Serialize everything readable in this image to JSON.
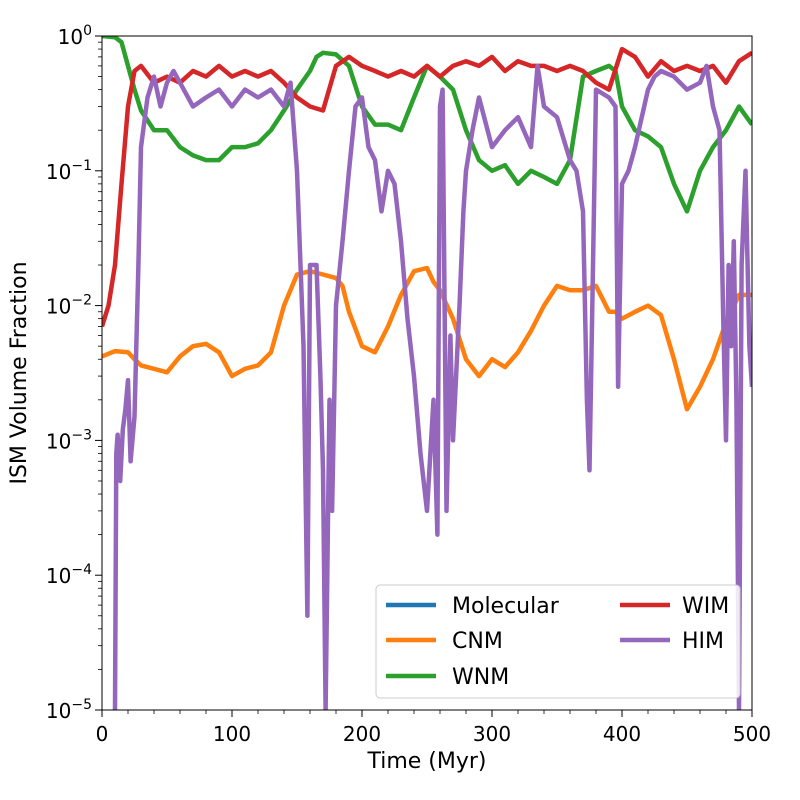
{
  "chart_data": {
    "type": "line",
    "title": "",
    "xlabel": "Time (Myr)",
    "ylabel": "ISM Volume Fraction",
    "xlim": [
      0,
      500
    ],
    "ylim": [
      1e-05,
      1
    ],
    "yscale": "log",
    "grid": false,
    "legend_position": "lower-right",
    "x_ticks": [
      "0",
      "100",
      "200",
      "300",
      "400",
      "500"
    ],
    "y_ticks": [
      {
        "mant": "10",
        "exp": "0"
      },
      {
        "mant": "10",
        "exp": "−1"
      },
      {
        "mant": "10",
        "exp": "−2"
      },
      {
        "mant": "10",
        "exp": "−3"
      },
      {
        "mant": "10",
        "exp": "−4"
      },
      {
        "mant": "10",
        "exp": "−5"
      }
    ],
    "series": [
      {
        "name": "Molecular",
        "color": "#1f77b4",
        "points": []
      },
      {
        "name": "CNM",
        "color": "#ff7f0e",
        "points": [
          [
            0,
            0.0042
          ],
          [
            10,
            0.0046
          ],
          [
            20,
            0.0045
          ],
          [
            25,
            0.004
          ],
          [
            30,
            0.0036
          ],
          [
            40,
            0.0034
          ],
          [
            50,
            0.0032
          ],
          [
            60,
            0.0042
          ],
          [
            70,
            0.005
          ],
          [
            80,
            0.0052
          ],
          [
            90,
            0.0045
          ],
          [
            100,
            0.003
          ],
          [
            110,
            0.0034
          ],
          [
            120,
            0.0036
          ],
          [
            130,
            0.0045
          ],
          [
            140,
            0.01
          ],
          [
            150,
            0.017
          ],
          [
            160,
            0.018
          ],
          [
            170,
            0.017
          ],
          [
            180,
            0.016
          ],
          [
            185,
            0.014
          ],
          [
            190,
            0.009
          ],
          [
            200,
            0.005
          ],
          [
            210,
            0.0045
          ],
          [
            220,
            0.007
          ],
          [
            230,
            0.012
          ],
          [
            240,
            0.018
          ],
          [
            250,
            0.019
          ],
          [
            255,
            0.015
          ],
          [
            260,
            0.013
          ],
          [
            270,
            0.008
          ],
          [
            280,
            0.004
          ],
          [
            290,
            0.003
          ],
          [
            300,
            0.004
          ],
          [
            310,
            0.0035
          ],
          [
            320,
            0.0045
          ],
          [
            330,
            0.0065
          ],
          [
            340,
            0.01
          ],
          [
            350,
            0.014
          ],
          [
            360,
            0.013
          ],
          [
            370,
            0.013
          ],
          [
            380,
            0.014
          ],
          [
            390,
            0.009
          ],
          [
            395,
            0.009
          ],
          [
            400,
            0.008
          ],
          [
            410,
            0.009
          ],
          [
            420,
            0.01
          ],
          [
            430,
            0.0085
          ],
          [
            440,
            0.004
          ],
          [
            450,
            0.0017
          ],
          [
            460,
            0.0025
          ],
          [
            470,
            0.004
          ],
          [
            480,
            0.0075
          ],
          [
            490,
            0.012
          ],
          [
            500,
            0.012
          ]
        ]
      },
      {
        "name": "WNM",
        "color": "#2ca02c",
        "points": [
          [
            0,
            1.0
          ],
          [
            10,
            0.98
          ],
          [
            15,
            0.9
          ],
          [
            20,
            0.6
          ],
          [
            25,
            0.4
          ],
          [
            30,
            0.28
          ],
          [
            40,
            0.2
          ],
          [
            50,
            0.2
          ],
          [
            60,
            0.15
          ],
          [
            70,
            0.13
          ],
          [
            80,
            0.12
          ],
          [
            90,
            0.12
          ],
          [
            100,
            0.15
          ],
          [
            110,
            0.15
          ],
          [
            120,
            0.16
          ],
          [
            130,
            0.2
          ],
          [
            140,
            0.28
          ],
          [
            150,
            0.4
          ],
          [
            160,
            0.55
          ],
          [
            165,
            0.7
          ],
          [
            170,
            0.75
          ],
          [
            180,
            0.73
          ],
          [
            190,
            0.6
          ],
          [
            200,
            0.3
          ],
          [
            210,
            0.22
          ],
          [
            220,
            0.22
          ],
          [
            230,
            0.2
          ],
          [
            240,
            0.35
          ],
          [
            250,
            0.6
          ],
          [
            260,
            0.5
          ],
          [
            270,
            0.4
          ],
          [
            280,
            0.2
          ],
          [
            290,
            0.12
          ],
          [
            300,
            0.1
          ],
          [
            310,
            0.11
          ],
          [
            320,
            0.08
          ],
          [
            330,
            0.1
          ],
          [
            340,
            0.09
          ],
          [
            350,
            0.08
          ],
          [
            360,
            0.12
          ],
          [
            370,
            0.5
          ],
          [
            380,
            0.55
          ],
          [
            390,
            0.6
          ],
          [
            395,
            0.55
          ],
          [
            400,
            0.3
          ],
          [
            410,
            0.2
          ],
          [
            420,
            0.18
          ],
          [
            430,
            0.15
          ],
          [
            440,
            0.08
          ],
          [
            450,
            0.05
          ],
          [
            460,
            0.1
          ],
          [
            470,
            0.15
          ],
          [
            480,
            0.2
          ],
          [
            490,
            0.3
          ],
          [
            500,
            0.22
          ]
        ]
      },
      {
        "name": "WIM",
        "color": "#d62728",
        "points": [
          [
            0,
            0.007
          ],
          [
            5,
            0.01
          ],
          [
            10,
            0.02
          ],
          [
            15,
            0.08
          ],
          [
            20,
            0.3
          ],
          [
            25,
            0.55
          ],
          [
            30,
            0.6
          ],
          [
            40,
            0.45
          ],
          [
            50,
            0.5
          ],
          [
            60,
            0.45
          ],
          [
            70,
            0.55
          ],
          [
            80,
            0.5
          ],
          [
            90,
            0.6
          ],
          [
            100,
            0.5
          ],
          [
            110,
            0.55
          ],
          [
            120,
            0.5
          ],
          [
            130,
            0.55
          ],
          [
            140,
            0.45
          ],
          [
            150,
            0.35
          ],
          [
            160,
            0.3
          ],
          [
            170,
            0.28
          ],
          [
            180,
            0.6
          ],
          [
            190,
            0.7
          ],
          [
            200,
            0.6
          ],
          [
            210,
            0.55
          ],
          [
            220,
            0.5
          ],
          [
            230,
            0.55
          ],
          [
            240,
            0.5
          ],
          [
            250,
            0.6
          ],
          [
            260,
            0.5
          ],
          [
            270,
            0.6
          ],
          [
            280,
            0.65
          ],
          [
            290,
            0.6
          ],
          [
            300,
            0.7
          ],
          [
            310,
            0.55
          ],
          [
            320,
            0.65
          ],
          [
            330,
            0.6
          ],
          [
            340,
            0.6
          ],
          [
            350,
            0.55
          ],
          [
            360,
            0.6
          ],
          [
            370,
            0.55
          ],
          [
            380,
            0.45
          ],
          [
            390,
            0.4
          ],
          [
            400,
            0.8
          ],
          [
            410,
            0.7
          ],
          [
            420,
            0.5
          ],
          [
            430,
            0.65
          ],
          [
            440,
            0.55
          ],
          [
            450,
            0.6
          ],
          [
            460,
            0.55
          ],
          [
            470,
            0.6
          ],
          [
            480,
            0.45
          ],
          [
            490,
            0.65
          ],
          [
            500,
            0.75
          ]
        ]
      },
      {
        "name": "HIM",
        "color": "#9467bd",
        "points": [
          [
            10,
            1e-05
          ],
          [
            11,
            0.0008
          ],
          [
            12,
            0.0011
          ],
          [
            14,
            0.0005
          ],
          [
            16,
            0.0012
          ],
          [
            18,
            0.0017
          ],
          [
            20,
            0.0028
          ],
          [
            22,
            0.0007
          ],
          [
            25,
            0.0015
          ],
          [
            28,
            0.02
          ],
          [
            30,
            0.15
          ],
          [
            35,
            0.35
          ],
          [
            40,
            0.5
          ],
          [
            45,
            0.3
          ],
          [
            50,
            0.45
          ],
          [
            55,
            0.55
          ],
          [
            60,
            0.45
          ],
          [
            70,
            0.3
          ],
          [
            80,
            0.35
          ],
          [
            90,
            0.4
          ],
          [
            100,
            0.3
          ],
          [
            110,
            0.4
          ],
          [
            120,
            0.35
          ],
          [
            130,
            0.4
          ],
          [
            140,
            0.3
          ],
          [
            145,
            0.45
          ],
          [
            150,
            0.1
          ],
          [
            155,
            0.005
          ],
          [
            158,
            5e-05
          ],
          [
            160,
            0.02
          ],
          [
            165,
            0.02
          ],
          [
            168,
            0.003
          ],
          [
            170,
            0.0006
          ],
          [
            172,
            1e-05
          ],
          [
            175,
            0.002
          ],
          [
            177,
            0.0003
          ],
          [
            180,
            0.01
          ],
          [
            185,
            0.03
          ],
          [
            190,
            0.1
          ],
          [
            195,
            0.3
          ],
          [
            200,
            0.35
          ],
          [
            205,
            0.15
          ],
          [
            210,
            0.12
          ],
          [
            215,
            0.05
          ],
          [
            220,
            0.1
          ],
          [
            225,
            0.08
          ],
          [
            230,
            0.03
          ],
          [
            235,
            0.008
          ],
          [
            240,
            0.003
          ],
          [
            245,
            0.0008
          ],
          [
            250,
            0.0003
          ],
          [
            255,
            0.002
          ],
          [
            258,
            0.0002
          ],
          [
            260,
            0.3
          ],
          [
            262,
            0.4
          ],
          [
            265,
            0.0003
          ],
          [
            268,
            0.006
          ],
          [
            270,
            0.001
          ],
          [
            275,
            0.01
          ],
          [
            278,
            0.05
          ],
          [
            280,
            0.1
          ],
          [
            285,
            0.2
          ],
          [
            290,
            0.35
          ],
          [
            300,
            0.15
          ],
          [
            310,
            0.2
          ],
          [
            320,
            0.25
          ],
          [
            330,
            0.15
          ],
          [
            335,
            0.6
          ],
          [
            340,
            0.3
          ],
          [
            350,
            0.25
          ],
          [
            360,
            0.12
          ],
          [
            365,
            0.1
          ],
          [
            370,
            0.05
          ],
          [
            373,
            0.002
          ],
          [
            375,
            0.0006
          ],
          [
            380,
            0.4
          ],
          [
            390,
            0.35
          ],
          [
            395,
            0.3
          ],
          [
            397,
            0.0025
          ],
          [
            400,
            0.08
          ],
          [
            405,
            0.1
          ],
          [
            410,
            0.15
          ],
          [
            420,
            0.4
          ],
          [
            425,
            0.5
          ],
          [
            430,
            0.55
          ],
          [
            440,
            0.5
          ],
          [
            450,
            0.4
          ],
          [
            460,
            0.45
          ],
          [
            465,
            0.6
          ],
          [
            470,
            0.3
          ],
          [
            475,
            0.2
          ],
          [
            478,
            0.007
          ],
          [
            480,
            0.001
          ],
          [
            482,
            0.02
          ],
          [
            484,
            0.005
          ],
          [
            486,
            0.03
          ],
          [
            488,
            0.002
          ],
          [
            490,
            1e-05
          ],
          [
            492,
            0.02
          ],
          [
            495,
            0.1
          ],
          [
            498,
            0.005
          ],
          [
            500,
            0.0025
          ]
        ]
      }
    ],
    "legend_order": [
      0,
      1,
      2,
      3,
      4
    ]
  }
}
